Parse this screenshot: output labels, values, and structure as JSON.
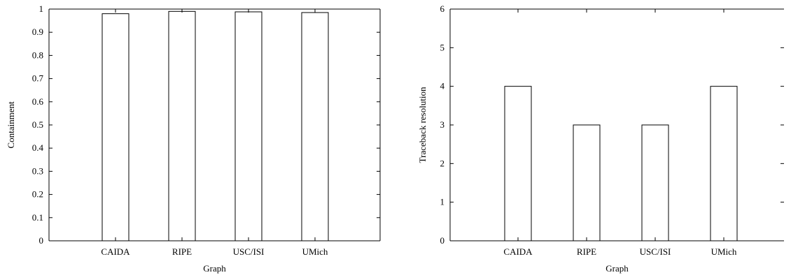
{
  "chart_data": [
    {
      "type": "bar",
      "categories": [
        "CAIDA",
        "RIPE",
        "USC/ISI",
        "UMich"
      ],
      "values": [
        0.98,
        0.99,
        0.988,
        0.985
      ],
      "xlabel": "Graph",
      "ylabel": "Containment",
      "ylim": [
        0,
        1
      ],
      "yticks": [
        0,
        0.1,
        0.2,
        0.3,
        0.4,
        0.5,
        0.6,
        0.7,
        0.8,
        0.9,
        1
      ],
      "ytick_labels": [
        "0",
        "0.1",
        "0.2",
        "0.3",
        "0.4",
        "0.5",
        "0.6",
        "0.7",
        "0.8",
        "0.9",
        "1"
      ],
      "grid": false,
      "bar_fill": "#ffffff",
      "bar_stroke": "#000000"
    },
    {
      "type": "bar",
      "categories": [
        "CAIDA",
        "RIPE",
        "USC/ISI",
        "UMich"
      ],
      "values": [
        4,
        3,
        3,
        4
      ],
      "xlabel": "Graph",
      "ylabel": "Traceback resolution",
      "ylim": [
        0,
        6
      ],
      "yticks": [
        0,
        1,
        2,
        3,
        4,
        5,
        6
      ],
      "ytick_labels": [
        "0",
        "1",
        "2",
        "3",
        "4",
        "5",
        "6"
      ],
      "grid": false,
      "bar_fill": "#ffffff",
      "bar_stroke": "#000000"
    }
  ]
}
